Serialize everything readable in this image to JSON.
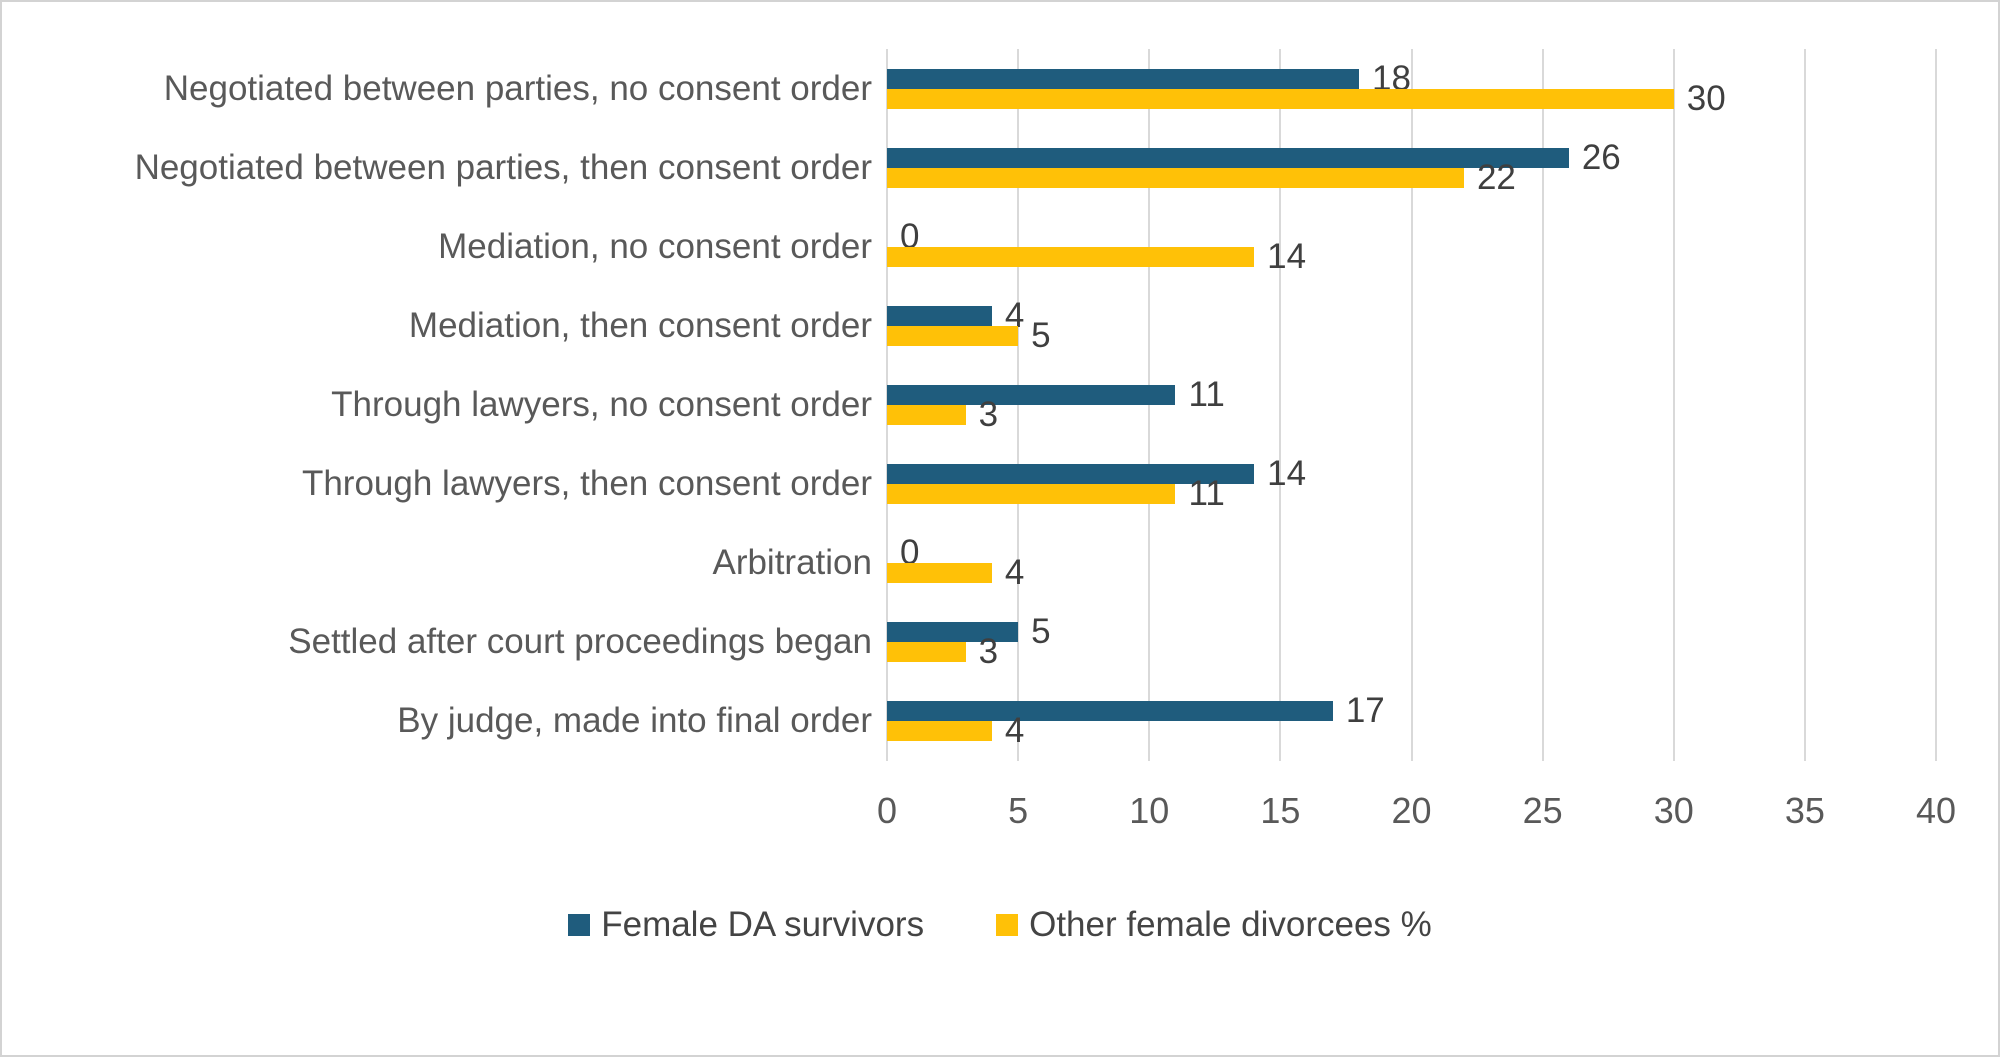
{
  "chart_data": {
    "type": "bar",
    "orientation": "horizontal",
    "title": "",
    "xlabel": "",
    "ylabel": "",
    "categories": [
      "Negotiated between parties, no consent order",
      "Negotiated between parties, then consent order",
      "Mediation, no consent order",
      "Mediation, then consent order",
      "Through lawyers, no consent order",
      "Through lawyers, then consent order",
      "Arbitration",
      "Settled after court proceedings began",
      "By judge, made into final order"
    ],
    "series": [
      {
        "name": "Female DA survivors",
        "color": "#1f5c7d",
        "values": [
          18,
          26,
          0,
          4,
          11,
          14,
          0,
          5,
          17
        ]
      },
      {
        "name": "Other female divorcees %",
        "color": "#ffc107",
        "values": [
          30,
          22,
          14,
          5,
          3,
          11,
          4,
          3,
          4
        ]
      }
    ],
    "xlim": [
      0,
      40
    ],
    "xticks": [
      0,
      5,
      10,
      15,
      20,
      25,
      30,
      35,
      40
    ],
    "grid": "vertical-gridlines",
    "gridline_color": "#d9d9d9",
    "data_labels": true,
    "data_label_color": "#3f3f3f",
    "axis_text_color": "#595959",
    "legend_position": "bottom",
    "background_color": "#ffffff",
    "border_color": "#d3d3d3"
  }
}
